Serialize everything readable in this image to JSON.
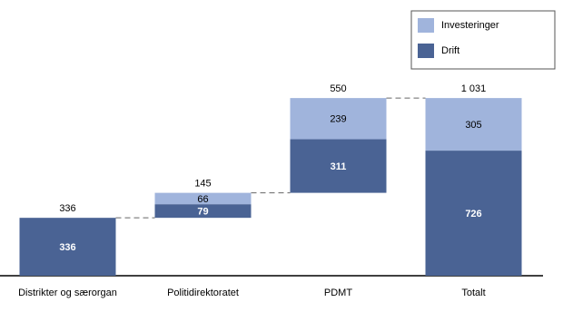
{
  "chart_data": {
    "type": "waterfall",
    "categories": [
      "Distrikter og særorgan",
      "Politidirektoratet",
      "PDMT",
      "Totalt"
    ],
    "series": [
      {
        "name": "Drift",
        "color": "#4a6394",
        "values": [
          336,
          79,
          311,
          726
        ]
      },
      {
        "name": "Investeringer",
        "color": "#a0b4dc",
        "values": [
          null,
          66,
          239,
          305
        ]
      }
    ],
    "totals": {
      "values": [
        336,
        145,
        550,
        1031
      ],
      "value_labels": [
        "336",
        "145",
        "550",
        "1 031"
      ]
    },
    "ylim": [
      0,
      1100
    ],
    "legend": "top-right"
  }
}
